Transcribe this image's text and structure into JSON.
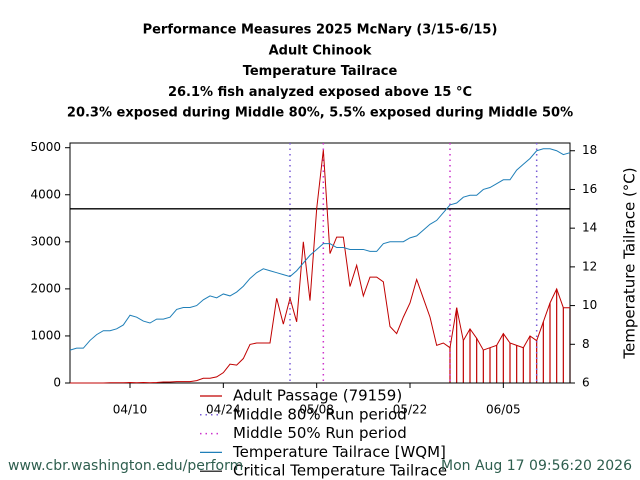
{
  "chart_data": {
    "type": "line",
    "title": [
      "Performance Measures 2025 McNary (3/15-6/15)",
      "Adult Chinook",
      "Temperature Tailrace",
      "26.1% fish analyzed exposed above 15 °C",
      "20.3% exposed during Middle 80%, 5.5% exposed during Middle 50%"
    ],
    "y2_label": "Temperature Tailrace (°C)",
    "x": [
      "04/01",
      "04/02",
      "04/03",
      "04/04",
      "04/05",
      "04/06",
      "04/07",
      "04/08",
      "04/09",
      "04/10",
      "04/11",
      "04/12",
      "04/13",
      "04/14",
      "04/15",
      "04/16",
      "04/17",
      "04/18",
      "04/19",
      "04/20",
      "04/21",
      "04/22",
      "04/23",
      "04/24",
      "04/25",
      "04/26",
      "04/27",
      "04/28",
      "04/29",
      "04/30",
      "05/01",
      "05/02",
      "05/03",
      "05/04",
      "05/05",
      "05/06",
      "05/07",
      "05/08",
      "05/09",
      "05/10",
      "05/11",
      "05/12",
      "05/13",
      "05/14",
      "05/15",
      "05/16",
      "05/17",
      "05/18",
      "05/19",
      "05/20",
      "05/21",
      "05/22",
      "05/23",
      "05/24",
      "05/25",
      "05/26",
      "05/27",
      "05/28",
      "05/29",
      "05/30",
      "05/31",
      "06/01",
      "06/02",
      "06/03",
      "06/04",
      "06/05",
      "06/06",
      "06/07",
      "06/08",
      "06/09",
      "06/10",
      "06/11",
      "06/12",
      "06/13",
      "06/14",
      "06/15"
    ],
    "series": [
      {
        "name": "Adult Passage (79159)",
        "color": "#c00000",
        "axis": "y",
        "values": [
          0,
          0,
          0,
          0,
          0,
          0,
          5,
          5,
          5,
          10,
          5,
          10,
          5,
          10,
          20,
          20,
          30,
          30,
          30,
          50,
          100,
          100,
          130,
          220,
          400,
          380,
          520,
          820,
          850,
          850,
          850,
          1800,
          1250,
          1800,
          1300,
          3000,
          1750,
          3700,
          4950,
          2750,
          3100,
          3100,
          2050,
          2500,
          1850,
          2250,
          2250,
          2150,
          1200,
          1050,
          1400,
          1700,
          2200,
          1800,
          1400,
          800,
          850,
          750,
          1600,
          900,
          1150,
          950,
          700,
          750,
          800,
          1050,
          850,
          800,
          750,
          1000,
          900,
          1300,
          1700,
          2000,
          1600,
          1600
        ]
      },
      {
        "name": "Temperature Tailrace [WQM]",
        "color": "#1f7fb8",
        "axis": "y2",
        "values": [
          7.7,
          7.8,
          7.8,
          8.2,
          8.5,
          8.7,
          8.7,
          8.8,
          9.0,
          9.5,
          9.4,
          9.2,
          9.1,
          9.3,
          9.3,
          9.4,
          9.8,
          9.9,
          9.9,
          10.0,
          10.3,
          10.5,
          10.4,
          10.6,
          10.5,
          10.7,
          11.0,
          11.4,
          11.7,
          11.9,
          11.8,
          11.7,
          11.6,
          11.5,
          11.8,
          12.2,
          12.6,
          12.9,
          13.2,
          13.2,
          13.0,
          13.0,
          12.9,
          12.9,
          12.9,
          12.8,
          12.8,
          13.2,
          13.3,
          13.3,
          13.3,
          13.5,
          13.6,
          13.9,
          14.2,
          14.4,
          14.8,
          15.2,
          15.3,
          15.6,
          15.7,
          15.7,
          16.0,
          16.1,
          16.3,
          16.5,
          16.5,
          17.0,
          17.3,
          17.6,
          18.0,
          18.1,
          18.1,
          18.0,
          17.8,
          17.9
        ]
      }
    ],
    "vlines": [
      {
        "name": "Middle 80% Run period",
        "color": "#7a5cd6",
        "x": [
          "05/04",
          "06/10"
        ]
      },
      {
        "name": "Middle 50% Run period",
        "color": "#cc33cc",
        "x": [
          "05/09",
          "05/28"
        ]
      }
    ],
    "hline": {
      "name": "Critical Temperature Tailrace",
      "color": "#000000",
      "axis": "y2",
      "value": 15
    },
    "xlim": [
      "04/01",
      "06/15"
    ],
    "xticks": [
      "04/10",
      "04/24",
      "05/08",
      "05/22",
      "06/05"
    ],
    "ylim": [
      0,
      5100
    ],
    "yticks": [
      0,
      1000,
      2000,
      3000,
      4000,
      5000
    ],
    "y2lim": [
      6,
      18.4
    ],
    "y2ticks": [
      6,
      8,
      10,
      12,
      14,
      16,
      18
    ],
    "footer": [
      "www.cbr.washington.edu/perform",
      "Mon Aug 17 09:56:20 2026"
    ]
  }
}
